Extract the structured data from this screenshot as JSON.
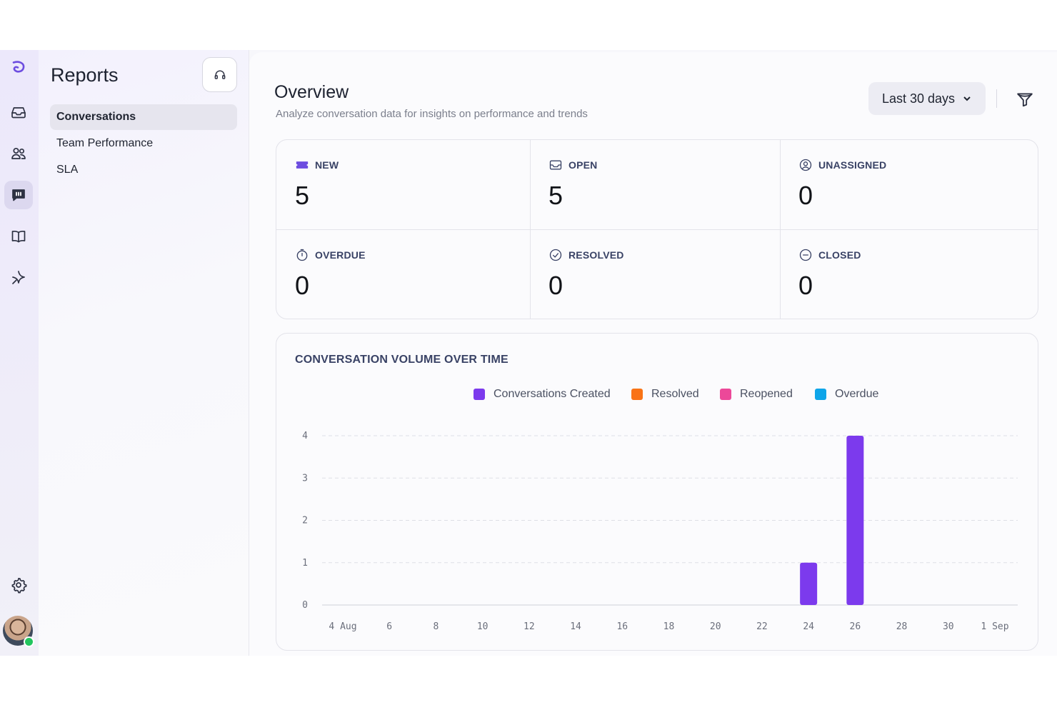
{
  "rail": {
    "icons": [
      "logo-icon",
      "inbox-icon",
      "contacts-icon",
      "reports-icon",
      "knowledge-base-icon",
      "captain-icon",
      "settings-icon"
    ]
  },
  "sidebar": {
    "title": "Reports",
    "items": [
      {
        "label": "Conversations",
        "active": true
      },
      {
        "label": "Team Performance",
        "active": false
      },
      {
        "label": "SLA",
        "active": false
      }
    ]
  },
  "overview": {
    "title": "Overview",
    "subtitle": "Analyze conversation data for insights on performance and trends",
    "range_label": "Last 30 days"
  },
  "stats": [
    {
      "label": "NEW",
      "value": "5",
      "icon": "ticket-icon"
    },
    {
      "label": "OPEN",
      "value": "5",
      "icon": "open-icon"
    },
    {
      "label": "UNASSIGNED",
      "value": "0",
      "icon": "user-question-icon"
    },
    {
      "label": "OVERDUE",
      "value": "0",
      "icon": "timer-icon"
    },
    {
      "label": "RESOLVED",
      "value": "0",
      "icon": "check-circle-icon"
    },
    {
      "label": "CLOSED",
      "value": "0",
      "icon": "minus-circle-icon"
    }
  ],
  "chart": {
    "title": "CONVERSATION VOLUME OVER TIME",
    "legend": [
      {
        "name": "Conversations Created",
        "color": "#7c3aed"
      },
      {
        "name": "Resolved",
        "color": "#f97316"
      },
      {
        "name": "Reopened",
        "color": "#ec4899"
      },
      {
        "name": "Overdue",
        "color": "#0ea5e9"
      }
    ]
  },
  "chart_data": {
    "type": "bar",
    "title": "CONVERSATION VOLUME OVER TIME",
    "x_ticks": [
      "4 Aug",
      "6",
      "8",
      "10",
      "12",
      "14",
      "16",
      "18",
      "20",
      "22",
      "24",
      "26",
      "28",
      "30",
      "1 Sep"
    ],
    "y_ticks": [
      0,
      1,
      2,
      3,
      4
    ],
    "ylim": [
      0,
      4
    ],
    "grid": true,
    "legend_position": "top-center",
    "series": [
      {
        "name": "Conversations Created",
        "color": "#7c3aed",
        "points": [
          {
            "x": "24",
            "y": 1
          },
          {
            "x": "26",
            "y": 4
          }
        ]
      },
      {
        "name": "Resolved",
        "color": "#f97316",
        "points": []
      },
      {
        "name": "Reopened",
        "color": "#ec4899",
        "points": []
      },
      {
        "name": "Overdue",
        "color": "#0ea5e9",
        "points": []
      }
    ]
  }
}
